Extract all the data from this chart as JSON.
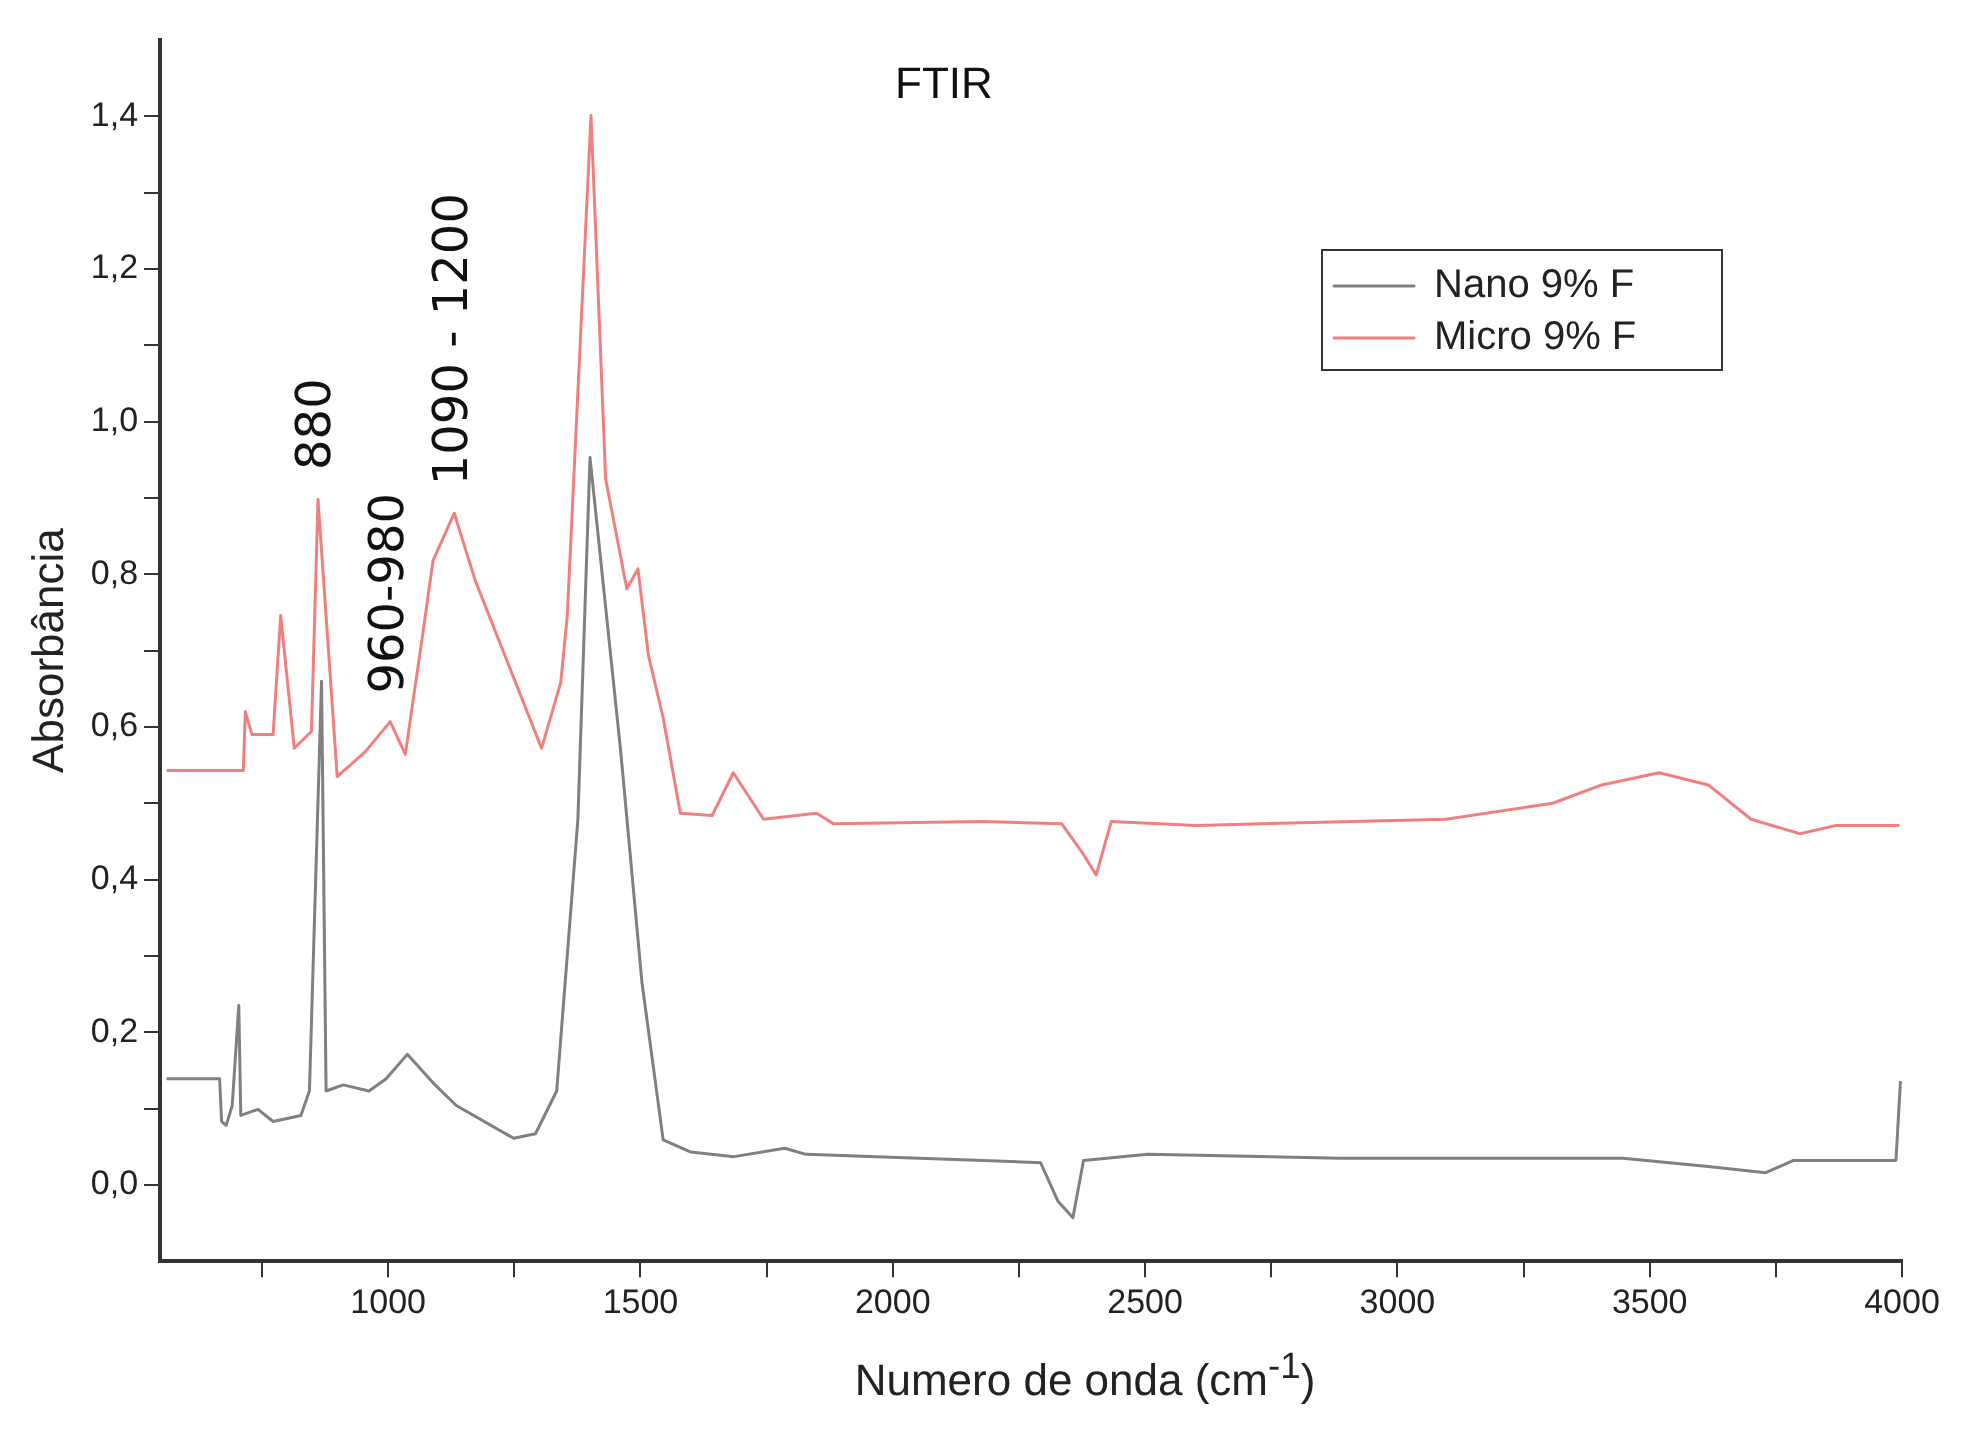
{
  "chart_data": {
    "type": "line",
    "title": "FTIR",
    "xlabel": "Numero de onda (cm$^{-1}$)",
    "ylabel": "Absorbância",
    "xlim": [
      548,
      4000
    ],
    "ylim": [
      -0.1,
      1.5
    ],
    "xticks": [
      {
        "value": 750,
        "label": null
      },
      1000,
      {
        "value": 1250,
        "label": null
      },
      1500,
      {
        "value": 1750,
        "label": null
      },
      2000,
      {
        "value": 2250,
        "label": null
      },
      2500,
      {
        "value": 2750,
        "label": null
      },
      3000,
      {
        "value": 3250,
        "label": null
      },
      3500,
      {
        "value": 3750,
        "label": null
      },
      4000
    ],
    "yticks": [
      {
        "value": 0,
        "label": "0,0"
      },
      {
        "value": 0.1,
        "label": null
      },
      {
        "value": 0.2,
        "label": "0,2"
      },
      {
        "value": 0.3,
        "label": null
      },
      {
        "value": 0.4,
        "label": "0,4"
      },
      {
        "value": 0.5,
        "label": null
      },
      {
        "value": 0.6,
        "label": "0,6"
      },
      {
        "value": 0.7,
        "label": null
      },
      {
        "value": 0.8,
        "label": "0,8"
      },
      {
        "value": 0.9,
        "label": null
      },
      {
        "value": 1.0,
        "label": "1,0"
      },
      {
        "value": 1.1,
        "label": null
      },
      {
        "value": 1.2,
        "label": "1,2"
      },
      {
        "value": 1.3,
        "label": null
      },
      {
        "value": 1.4,
        "label": "1,4"
      }
    ],
    "grid": false,
    "legend": "top right",
    "marker": "none",
    "line_style": "solid",
    "series": [
      {
        "name": "Nano 9% F",
        "color": "#808080",
        "x": [
          561,
          666,
          670,
          679,
          691,
          704,
          708,
          742,
          772,
          827,
          844,
          868,
          877,
          911,
          962,
          996,
          1038,
          1093,
          1135,
          1249,
          1292,
          1334,
          1376,
          1400,
          1461,
          1503,
          1545,
          1600,
          1685,
          1786,
          1828,
          2179,
          2293,
          2327,
          2357,
          2378,
          2505,
          2885,
          3447,
          3616,
          3730,
          3785,
          3988,
          3997
        ],
        "values": [
          0.139,
          0.139,
          0.083,
          0.078,
          0.104,
          0.235,
          0.091,
          0.099,
          0.083,
          0.091,
          0.123,
          0.66,
          0.123,
          0.131,
          0.123,
          0.139,
          0.171,
          0.131,
          0.104,
          0.061,
          0.067,
          0.123,
          0.479,
          0.953,
          0.567,
          0.265,
          0.059,
          0.043,
          0.037,
          0.048,
          0.04,
          0.032,
          0.029,
          -0.021,
          -0.043,
          0.032,
          0.04,
          0.035,
          0.035,
          0.024,
          0.016,
          0.032,
          0.032,
          0.136
        ]
      },
      {
        "name": "Micro 9% F",
        "color": "#f08080",
        "x": [
          561,
          713,
          717,
          730,
          772,
          787,
          814,
          848,
          861,
          899,
          954,
          1004,
          1034,
          1068,
          1089,
          1131,
          1173,
          1237,
          1304,
          1342,
          1355,
          1402,
          1431,
          1473,
          1495,
          1516,
          1545,
          1579,
          1642,
          1684,
          1744,
          1849,
          1883,
          2179,
          2335,
          2378,
          2403,
          2433,
          2602,
          3096,
          3308,
          3405,
          3519,
          3616,
          3701,
          3798,
          3870,
          3995
        ],
        "values": [
          0.543,
          0.543,
          0.62,
          0.59,
          0.59,
          0.746,
          0.572,
          0.594,
          0.898,
          0.535,
          0.567,
          0.607,
          0.564,
          0.719,
          0.818,
          0.88,
          0.791,
          0.684,
          0.572,
          0.658,
          0.746,
          1.401,
          0.925,
          0.781,
          0.807,
          0.693,
          0.612,
          0.487,
          0.484,
          0.54,
          0.479,
          0.487,
          0.473,
          0.476,
          0.473,
          0.433,
          0.406,
          0.476,
          0.471,
          0.479,
          0.5,
          0.524,
          0.54,
          0.524,
          0.479,
          0.46,
          0.471,
          0.471
        ]
      }
    ],
    "annotations": [
      {
        "text": "880",
        "x": 861,
        "y": 0.9
      },
      {
        "text": "960-980",
        "x": 1004,
        "y": 0.607
      },
      {
        "text": "1090 - 1200",
        "x": 1131,
        "y": 0.88
      }
    ]
  }
}
